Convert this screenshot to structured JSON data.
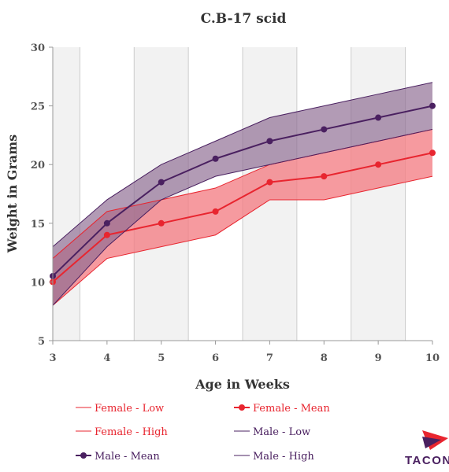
{
  "chart_data": {
    "type": "line",
    "title": "C.B-17 scid",
    "xlabel": "Age in Weeks",
    "ylabel": "Weight in Grams",
    "x": [
      3,
      4,
      5,
      6,
      7,
      8,
      9,
      10
    ],
    "xlim": [
      3,
      10
    ],
    "ylim": [
      5,
      30
    ],
    "yticks": [
      5,
      10,
      15,
      20,
      25,
      30
    ],
    "xticks": [
      3,
      4,
      5,
      6,
      7,
      8,
      9,
      10
    ],
    "grid": "alternating shaded week columns",
    "legend_position": "bottom",
    "colors": {
      "female": "#e8252f",
      "female_fill": "#f47e84",
      "male": "#4a2060",
      "male_fill": "#8e6c92",
      "band": "#f2f2f2"
    },
    "series": [
      {
        "name": "Female - Low",
        "values": [
          8,
          12,
          13,
          14,
          17,
          17,
          18,
          19
        ]
      },
      {
        "name": "Female - Mean",
        "values": [
          10,
          14,
          15,
          16,
          18.5,
          19,
          20,
          21
        ]
      },
      {
        "name": "Female - High",
        "values": [
          12,
          16,
          17,
          18,
          20,
          21,
          22,
          23
        ]
      },
      {
        "name": "Male - Low",
        "values": [
          8,
          13,
          17,
          19,
          20,
          21,
          22,
          23
        ]
      },
      {
        "name": "Male - Mean",
        "values": [
          10.5,
          15,
          18.5,
          20.5,
          22,
          23,
          24,
          25
        ]
      },
      {
        "name": "Male - High",
        "values": [
          13,
          17,
          20,
          22,
          24,
          25,
          26,
          27
        ]
      }
    ]
  },
  "logo": {
    "text": "TACON"
  }
}
